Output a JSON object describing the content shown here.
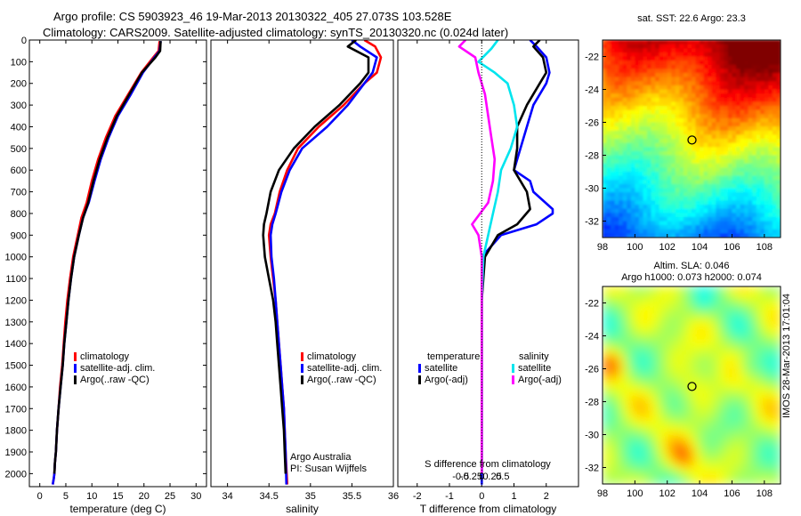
{
  "header": {
    "line1": "Argo profile: CS 5903923_46 19-Mar-2013 20130322_405 27.073S 103.528E",
    "line2": "Climatology: CARS2009. Satellite-adjusted climatology: synTS_20130320.nc (0.024d later)"
  },
  "side_stamp": "IMOS 28-Mar-2013 17:01:04",
  "colors": {
    "climatology": "#ff0000",
    "satellite": "#0000ff",
    "argo": "#000000",
    "sal_satellite": "#00e5ee",
    "sal_argo": "#ff00ff"
  },
  "chart_data": [
    {
      "type": "line",
      "id": "temperature",
      "xlabel": "temperature (deg C)",
      "ylabel": "",
      "xlim": [
        -2,
        32
      ],
      "ylim": [
        2060,
        0
      ],
      "y_inverted": true,
      "xticks": [
        0,
        5,
        10,
        15,
        20,
        25,
        30
      ],
      "yticks": [
        0,
        100,
        200,
        300,
        400,
        500,
        600,
        700,
        800,
        900,
        1000,
        1100,
        1200,
        1300,
        1400,
        1500,
        1600,
        1700,
        1800,
        1900,
        2000
      ],
      "legend": [
        "climatology",
        "satellite-adj. clim.",
        "Argo(..raw -QC)"
      ],
      "series": [
        {
          "name": "climatology",
          "color": "#ff0000",
          "x": [
            23,
            22.8,
            21.8,
            19.5,
            17,
            14.5,
            12.7,
            11.2,
            10,
            9,
            8,
            7.3,
            6.4,
            5.8,
            5.3,
            4.9,
            4.6,
            4.3,
            3.9,
            3.6,
            3.3,
            3.1,
            2.9,
            2.8,
            2.7,
            2.6,
            2.5
          ],
          "y": [
            5,
            50,
            80,
            150,
            250,
            350,
            450,
            550,
            650,
            750,
            820,
            900,
            1000,
            1100,
            1200,
            1300,
            1400,
            1500,
            1600,
            1700,
            1800,
            1900,
            1950,
            2000,
            2020,
            2035,
            2050
          ]
        },
        {
          "name": "satellite-adj. clim.",
          "color": "#0000ff",
          "x": [
            23.2,
            23,
            22,
            19.8,
            17.5,
            15,
            13.2,
            11.7,
            10.5,
            9.4,
            8.3,
            7.5,
            6.6,
            6,
            5.5,
            5.1,
            4.7,
            4.4,
            4,
            3.6,
            3.3,
            3.1,
            2.9,
            2.8,
            2.7,
            2.6,
            2.5
          ],
          "y": [
            5,
            50,
            80,
            150,
            250,
            350,
            450,
            550,
            650,
            750,
            820,
            900,
            1000,
            1100,
            1200,
            1300,
            1400,
            1500,
            1600,
            1700,
            1800,
            1900,
            1950,
            2000,
            2020,
            2035,
            2050
          ]
        },
        {
          "name": "Argo(..raw -QC)",
          "color": "#000000",
          "x": [
            23.2,
            23.1,
            22.2,
            19.6,
            17.2,
            14.8,
            13,
            11.5,
            10.3,
            9.3,
            8.3,
            7.5,
            6.6,
            6,
            5.5,
            5.1,
            4.7,
            4.4,
            4,
            3.6,
            3.3,
            3.1,
            2.9,
            2.8
          ],
          "y": [
            5,
            50,
            80,
            150,
            250,
            350,
            450,
            550,
            650,
            750,
            820,
            900,
            1000,
            1100,
            1200,
            1300,
            1400,
            1500,
            1600,
            1700,
            1800,
            1900,
            1950,
            2000
          ]
        }
      ]
    },
    {
      "type": "line",
      "id": "salinity",
      "xlabel": "salinity",
      "xlim": [
        33.8,
        36.0
      ],
      "ylim": [
        2060,
        0
      ],
      "xticks": [
        34,
        34.5,
        35,
        35.5,
        36
      ],
      "xtick_labels": [
        "34",
        "34.5",
        "35",
        "35.5",
        "36"
      ],
      "legend": [
        "climatology",
        "satellite-adj. clim.",
        "Argo(..raw -QC)"
      ],
      "annotation": [
        "Argo Australia",
        "PI: Susan Wijffels"
      ],
      "series": [
        {
          "name": "climatology",
          "color": "#ff0000",
          "x": [
            35.65,
            35.78,
            35.85,
            35.8,
            35.65,
            35.4,
            35.1,
            34.85,
            34.72,
            34.63,
            34.57,
            34.52,
            34.5,
            34.52,
            34.55,
            34.58,
            34.6,
            34.62,
            34.64,
            34.66,
            34.68,
            34.69,
            34.7,
            34.72
          ],
          "y": [
            0,
            30,
            80,
            150,
            200,
            300,
            400,
            500,
            600,
            700,
            800,
            850,
            900,
            1000,
            1100,
            1200,
            1300,
            1400,
            1500,
            1600,
            1700,
            1800,
            1900,
            2050
          ]
        },
        {
          "name": "satellite-adj. clim.",
          "color": "#0000ff",
          "x": [
            35.5,
            35.6,
            35.8,
            35.75,
            35.65,
            35.45,
            35.2,
            34.9,
            34.75,
            34.65,
            34.58,
            34.54,
            34.52,
            34.53,
            34.56,
            34.58,
            34.6,
            34.62,
            34.64,
            34.66,
            34.68,
            34.69,
            34.7,
            34.71
          ],
          "y": [
            0,
            30,
            80,
            150,
            200,
            300,
            400,
            500,
            600,
            700,
            800,
            850,
            900,
            1000,
            1100,
            1200,
            1300,
            1400,
            1500,
            1600,
            1700,
            1800,
            1900,
            2050
          ]
        },
        {
          "name": "Argo(..raw -QC)",
          "color": "#000000",
          "x": [
            35.55,
            35.45,
            35.7,
            35.7,
            35.6,
            35.35,
            35.05,
            34.8,
            34.62,
            34.52,
            34.47,
            34.44,
            34.43,
            34.45,
            34.5,
            34.55,
            34.58,
            34.6,
            34.62,
            34.64,
            34.66,
            34.68,
            34.69,
            34.7
          ],
          "y": [
            0,
            30,
            80,
            150,
            200,
            300,
            400,
            500,
            600,
            700,
            800,
            850,
            900,
            1000,
            1100,
            1200,
            1300,
            1400,
            1500,
            1600,
            1700,
            1800,
            1900,
            2000
          ]
        }
      ]
    },
    {
      "type": "line",
      "id": "difference",
      "xlabel": "T difference from climatology",
      "xlabel2": "S difference from climatology",
      "xlim": [
        -2.6,
        3.0
      ],
      "ylim": [
        2060,
        0
      ],
      "xticks": [
        -2,
        -1,
        0,
        1,
        2
      ],
      "s_xticks": [
        -0.5,
        -0.25,
        0,
        0.25,
        0.5
      ],
      "s_xtick_labels": [
        "-0.5",
        "-0.25",
        "0",
        "0.25",
        "0.5"
      ],
      "legend_headers": [
        "temperature",
        "salinity"
      ],
      "legend": [
        [
          "satellite",
          "Argo(-adj)"
        ],
        [
          "satellite",
          "Argo(-adj)"
        ]
      ],
      "series": [
        {
          "name": "satellite",
          "group": "temperature",
          "color": "#0000ff",
          "x": [
            1.5,
            1.7,
            2.0,
            2.1,
            2.0,
            1.6,
            1.4,
            1.2,
            1.0,
            1.5,
            1.6,
            2.2,
            2.2,
            1.7,
            0.6,
            0.0,
            0.0,
            0.0,
            0.0
          ],
          "y": [
            0,
            30,
            80,
            150,
            200,
            300,
            400,
            500,
            600,
            650,
            700,
            780,
            800,
            850,
            900,
            1000,
            1400,
            1800,
            2050
          ]
        },
        {
          "name": "Argo(-adj)",
          "group": "temperature",
          "color": "#000000",
          "x": [
            1.8,
            1.6,
            1.9,
            2.0,
            1.8,
            1.4,
            1.1,
            1.1,
            1.0,
            1.2,
            1.4,
            1.5,
            1.1,
            0.5,
            0.1,
            0.0,
            0.0,
            0.0
          ],
          "y": [
            0,
            30,
            80,
            150,
            200,
            300,
            400,
            500,
            600,
            650,
            700,
            780,
            850,
            900,
            1000,
            1200,
            1600,
            2000
          ]
        },
        {
          "name": "satellite",
          "group": "salinity",
          "color": "#00e5ee",
          "x": [
            0.5,
            0.3,
            -0.1,
            0.4,
            0.8,
            1.0,
            1.1,
            0.9,
            0.6,
            0.5,
            0.35,
            0.2,
            0.05,
            0.0,
            0.0,
            0.0
          ],
          "y": [
            0,
            40,
            100,
            150,
            200,
            300,
            400,
            500,
            600,
            700,
            800,
            900,
            1000,
            1200,
            1600,
            2000
          ]
        },
        {
          "name": "Argo(-adj)",
          "group": "salinity",
          "color": "#ff00ff",
          "x": [
            -0.5,
            -0.7,
            -0.2,
            -0.1,
            0.1,
            0.2,
            0.3,
            0.4,
            0.35,
            0.2,
            -0.3,
            -0.1,
            0.0,
            0.0,
            0.0
          ],
          "y": [
            0,
            30,
            80,
            150,
            250,
            350,
            450,
            550,
            650,
            750,
            850,
            900,
            1000,
            1400,
            2000
          ]
        }
      ]
    },
    {
      "type": "heatmap",
      "id": "sst_map",
      "title": "sat. SST: 22.6  Argo: 23.3",
      "xlim": [
        98,
        109
      ],
      "ylim": [
        -33,
        -21
      ],
      "xticks": [
        98,
        100,
        102,
        104,
        106,
        108
      ],
      "yticks": [
        -22,
        -24,
        -26,
        -28,
        -30,
        -32
      ],
      "marker": {
        "lon": 103.528,
        "lat": -27.073
      }
    },
    {
      "type": "heatmap",
      "id": "sla_map",
      "title": [
        "Altim. SLA: 0.046",
        "Argo h1000: 0.073 h2000: 0.074"
      ],
      "xlim": [
        98,
        109
      ],
      "ylim": [
        -33,
        -21
      ],
      "xticks": [
        98,
        100,
        102,
        104,
        106,
        108
      ],
      "yticks": [
        -22,
        -24,
        -26,
        -28,
        -30,
        -32
      ],
      "marker": {
        "lon": 103.528,
        "lat": -27.073
      }
    }
  ]
}
